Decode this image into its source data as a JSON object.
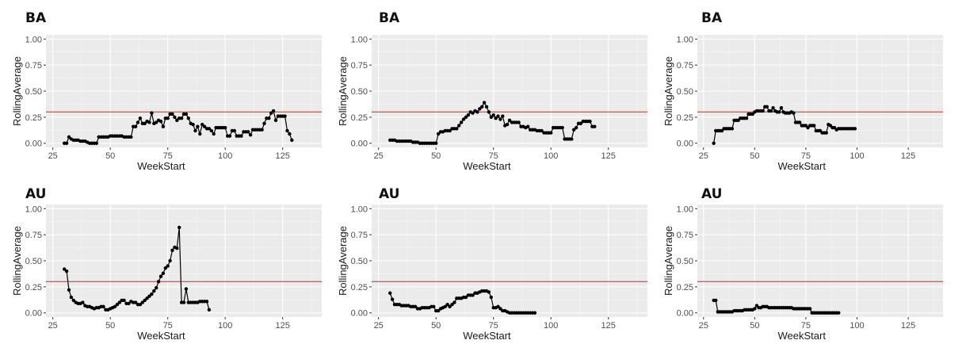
{
  "chart_data": [
    {
      "type": "line",
      "title": "BA",
      "xlabel": "WeekStart",
      "ylabel": "RollingAverage",
      "xlim": [
        22,
        142
      ],
      "ylim": [
        -0.04,
        1.04
      ],
      "xticks": [
        "25",
        "50",
        "75",
        "100",
        "125"
      ],
      "yticks": [
        "0.00",
        "0.25",
        "0.50",
        "0.75",
        "1.00"
      ],
      "hline": 0.3,
      "hline_color": "#e8554e",
      "grid": true,
      "background": "#ebebeb",
      "x": [
        30,
        31,
        32,
        33,
        34,
        35,
        36,
        37,
        38,
        39,
        40,
        41,
        42,
        43,
        44,
        45,
        46,
        47,
        48,
        49,
        50,
        51,
        52,
        53,
        54,
        55,
        56,
        57,
        58,
        59,
        60,
        61,
        62,
        63,
        64,
        65,
        66,
        67,
        68,
        69,
        70,
        71,
        72,
        73,
        74,
        75,
        76,
        77,
        78,
        79,
        80,
        81,
        82,
        83,
        84,
        85,
        86,
        87,
        88,
        89,
        90,
        91,
        92,
        93,
        94,
        95,
        96,
        97,
        98,
        99,
        100,
        101,
        102,
        103,
        104,
        105,
        106,
        107,
        108,
        109,
        110,
        111,
        112,
        113,
        114,
        115,
        116,
        117,
        118,
        119,
        120,
        121,
        122,
        123,
        124,
        125,
        126,
        127,
        128,
        129
      ],
      "y": [
        0.0,
        0.0,
        0.06,
        0.04,
        0.03,
        0.03,
        0.03,
        0.02,
        0.02,
        0.02,
        0.01,
        0.0,
        0.0,
        0.0,
        0.0,
        0.06,
        0.06,
        0.06,
        0.06,
        0.06,
        0.07,
        0.07,
        0.07,
        0.07,
        0.07,
        0.07,
        0.06,
        0.06,
        0.06,
        0.06,
        0.16,
        0.16,
        0.2,
        0.24,
        0.19,
        0.19,
        0.21,
        0.2,
        0.29,
        0.19,
        0.2,
        0.22,
        0.21,
        0.16,
        0.24,
        0.24,
        0.28,
        0.28,
        0.25,
        0.22,
        0.24,
        0.24,
        0.28,
        0.28,
        0.24,
        0.19,
        0.18,
        0.12,
        0.16,
        0.09,
        0.18,
        0.16,
        0.14,
        0.14,
        0.12,
        0.09,
        0.15,
        0.15,
        0.15,
        0.15,
        0.15,
        0.07,
        0.07,
        0.12,
        0.12,
        0.07,
        0.07,
        0.07,
        0.11,
        0.11,
        0.11,
        0.08,
        0.13,
        0.13,
        0.13,
        0.13,
        0.13,
        0.19,
        0.24,
        0.24,
        0.29,
        0.31,
        0.22,
        0.26,
        0.26,
        0.26,
        0.26,
        0.12,
        0.09,
        0.03
      ]
    },
    {
      "type": "line",
      "title": "BA",
      "xlabel": "WeekStart",
      "ylabel": "RollingAverage",
      "xlim": [
        22,
        142
      ],
      "ylim": [
        -0.04,
        1.04
      ],
      "xticks": [
        "25",
        "50",
        "75",
        "100",
        "125"
      ],
      "yticks": [
        "0.00",
        "0.25",
        "0.50",
        "0.75",
        "1.00"
      ],
      "hline": 0.3,
      "hline_color": "#e8554e",
      "grid": true,
      "background": "#ebebeb",
      "x": [
        30,
        31,
        32,
        33,
        34,
        35,
        36,
        37,
        38,
        39,
        40,
        41,
        42,
        43,
        44,
        45,
        46,
        47,
        48,
        49,
        50,
        51,
        52,
        53,
        54,
        55,
        56,
        57,
        58,
        59,
        60,
        61,
        62,
        63,
        64,
        65,
        66,
        67,
        68,
        69,
        70,
        71,
        72,
        73,
        74,
        75,
        76,
        77,
        78,
        79,
        80,
        81,
        82,
        83,
        84,
        85,
        86,
        87,
        88,
        89,
        90,
        91,
        92,
        93,
        94,
        95,
        96,
        97,
        98,
        99,
        100,
        101,
        102,
        103,
        104,
        105,
        106,
        107,
        108,
        109,
        110,
        111,
        112,
        113,
        114,
        115,
        116,
        117,
        118,
        119
      ],
      "y": [
        0.03,
        0.03,
        0.03,
        0.02,
        0.02,
        0.02,
        0.02,
        0.02,
        0.02,
        0.02,
        0.01,
        0.01,
        0.01,
        0.0,
        0.0,
        0.0,
        0.0,
        0.0,
        0.0,
        0.0,
        0.0,
        0.09,
        0.11,
        0.11,
        0.12,
        0.12,
        0.12,
        0.14,
        0.14,
        0.14,
        0.17,
        0.2,
        0.23,
        0.25,
        0.27,
        0.3,
        0.29,
        0.31,
        0.3,
        0.33,
        0.35,
        0.39,
        0.35,
        0.3,
        0.25,
        0.27,
        0.24,
        0.26,
        0.23,
        0.26,
        0.17,
        0.18,
        0.22,
        0.2,
        0.2,
        0.2,
        0.2,
        0.16,
        0.16,
        0.15,
        0.16,
        0.13,
        0.13,
        0.13,
        0.12,
        0.12,
        0.12,
        0.1,
        0.1,
        0.1,
        0.1,
        0.15,
        0.15,
        0.15,
        0.15,
        0.15,
        0.04,
        0.04,
        0.04,
        0.04,
        0.13,
        0.15,
        0.19,
        0.19,
        0.21,
        0.21,
        0.21,
        0.21,
        0.16,
        0.16
      ]
    },
    {
      "type": "line",
      "title": "BA",
      "xlabel": "WeekStart",
      "ylabel": "RollingAverage",
      "xlim": [
        22,
        142
      ],
      "ylim": [
        -0.04,
        1.04
      ],
      "xticks": [
        "25",
        "50",
        "75",
        "100",
        "125"
      ],
      "yticks": [
        "0.00",
        "0.25",
        "0.50",
        "0.75",
        "1.00"
      ],
      "hline": 0.3,
      "hline_color": "#e8554e",
      "grid": true,
      "background": "#ebebeb",
      "x": [
        30,
        31,
        32,
        33,
        34,
        35,
        36,
        37,
        38,
        39,
        40,
        41,
        42,
        43,
        44,
        45,
        46,
        47,
        48,
        49,
        50,
        51,
        52,
        53,
        54,
        55,
        56,
        57,
        58,
        59,
        60,
        61,
        62,
        63,
        64,
        65,
        66,
        67,
        68,
        69,
        70,
        71,
        72,
        73,
        74,
        75,
        76,
        77,
        78,
        79,
        80,
        81,
        82,
        83,
        84,
        85,
        86,
        87,
        88,
        89,
        90,
        91,
        92,
        93,
        94,
        95,
        96,
        97,
        98,
        99
      ],
      "y": [
        0.0,
        0.12,
        0.12,
        0.12,
        0.12,
        0.14,
        0.14,
        0.14,
        0.14,
        0.14,
        0.22,
        0.22,
        0.22,
        0.24,
        0.24,
        0.24,
        0.24,
        0.28,
        0.28,
        0.28,
        0.3,
        0.31,
        0.31,
        0.31,
        0.31,
        0.35,
        0.35,
        0.31,
        0.31,
        0.34,
        0.31,
        0.3,
        0.3,
        0.34,
        0.3,
        0.29,
        0.29,
        0.29,
        0.3,
        0.29,
        0.2,
        0.2,
        0.2,
        0.17,
        0.17,
        0.17,
        0.15,
        0.17,
        0.17,
        0.17,
        0.12,
        0.12,
        0.12,
        0.1,
        0.1,
        0.1,
        0.18,
        0.17,
        0.15,
        0.15,
        0.13,
        0.14,
        0.14,
        0.14,
        0.14,
        0.14,
        0.14,
        0.14,
        0.14,
        0.14
      ]
    },
    {
      "type": "line",
      "title": "AU",
      "xlabel": "WeekStart",
      "ylabel": "RollingAverage",
      "xlim": [
        22,
        142
      ],
      "ylim": [
        -0.04,
        1.04
      ],
      "xticks": [
        "25",
        "50",
        "75",
        "100",
        "125"
      ],
      "yticks": [
        "0.00",
        "0.25",
        "0.50",
        "0.75",
        "1.00"
      ],
      "hline": 0.3,
      "hline_color": "#e8554e",
      "grid": true,
      "background": "#ebebeb",
      "x": [
        30,
        31,
        32,
        33,
        34,
        35,
        36,
        37,
        38,
        39,
        40,
        41,
        42,
        43,
        44,
        45,
        46,
        47,
        48,
        49,
        50,
        51,
        52,
        53,
        54,
        55,
        56,
        57,
        58,
        59,
        60,
        61,
        62,
        63,
        64,
        65,
        66,
        67,
        68,
        69,
        70,
        71,
        72,
        73,
        74,
        75,
        76,
        77,
        78,
        79,
        80,
        81,
        82,
        83,
        84,
        85,
        86,
        87,
        88,
        89,
        90,
        91,
        92,
        93
      ],
      "y": [
        0.42,
        0.4,
        0.22,
        0.15,
        0.12,
        0.1,
        0.09,
        0.09,
        0.1,
        0.07,
        0.06,
        0.06,
        0.05,
        0.04,
        0.05,
        0.05,
        0.06,
        0.06,
        0.03,
        0.03,
        0.04,
        0.05,
        0.06,
        0.08,
        0.1,
        0.12,
        0.12,
        0.09,
        0.09,
        0.11,
        0.1,
        0.1,
        0.08,
        0.08,
        0.1,
        0.12,
        0.14,
        0.16,
        0.18,
        0.21,
        0.24,
        0.3,
        0.35,
        0.38,
        0.43,
        0.45,
        0.5,
        0.6,
        0.63,
        0.62,
        0.82,
        0.1,
        0.1,
        0.23,
        0.1,
        0.1,
        0.1,
        0.1,
        0.1,
        0.11,
        0.11,
        0.11,
        0.11,
        0.03
      ]
    },
    {
      "type": "line",
      "title": "AU",
      "xlabel": "WeekStart",
      "ylabel": "RollingAverage",
      "xlim": [
        22,
        142
      ],
      "ylim": [
        -0.04,
        1.04
      ],
      "xticks": [
        "25",
        "50",
        "75",
        "100",
        "125"
      ],
      "yticks": [
        "0.00",
        "0.25",
        "0.50",
        "0.75",
        "1.00"
      ],
      "hline": 0.3,
      "hline_color": "#e8554e",
      "grid": true,
      "background": "#ebebeb",
      "x": [
        30,
        31,
        32,
        33,
        34,
        35,
        36,
        37,
        38,
        39,
        40,
        41,
        42,
        43,
        44,
        45,
        46,
        47,
        48,
        49,
        50,
        51,
        52,
        53,
        54,
        55,
        56,
        57,
        58,
        59,
        60,
        61,
        62,
        63,
        64,
        65,
        66,
        67,
        68,
        69,
        70,
        71,
        72,
        73,
        74,
        75,
        76,
        77,
        78,
        79,
        80,
        81,
        82,
        83,
        84,
        85,
        86,
        87,
        88,
        89,
        90,
        91,
        92,
        93
      ],
      "y": [
        0.19,
        0.13,
        0.08,
        0.08,
        0.08,
        0.07,
        0.07,
        0.07,
        0.07,
        0.06,
        0.06,
        0.06,
        0.04,
        0.04,
        0.05,
        0.05,
        0.05,
        0.05,
        0.06,
        0.06,
        0.02,
        0.02,
        0.04,
        0.05,
        0.06,
        0.08,
        0.06,
        0.08,
        0.1,
        0.14,
        0.14,
        0.14,
        0.15,
        0.15,
        0.17,
        0.17,
        0.17,
        0.19,
        0.19,
        0.2,
        0.21,
        0.21,
        0.21,
        0.2,
        0.15,
        0.05,
        0.05,
        0.06,
        0.04,
        0.02,
        0.02,
        0.01,
        0.0,
        0.0,
        0.0,
        0.0,
        0.0,
        0.0,
        0.0,
        0.0,
        0.0,
        0.0,
        0.0,
        0.0
      ]
    },
    {
      "type": "line",
      "title": "AU",
      "xlabel": "WeekStart",
      "ylabel": "RollingAverage",
      "xlim": [
        22,
        142
      ],
      "ylim": [
        -0.04,
        1.04
      ],
      "xticks": [
        "25",
        "50",
        "75",
        "100",
        "125"
      ],
      "yticks": [
        "0.00",
        "0.25",
        "0.50",
        "0.75",
        "1.00"
      ],
      "hline": 0.3,
      "hline_color": "#e8554e",
      "grid": true,
      "background": "#ebebeb",
      "x": [
        30,
        31,
        32,
        33,
        34,
        35,
        36,
        37,
        38,
        39,
        40,
        41,
        42,
        43,
        44,
        45,
        46,
        47,
        48,
        49,
        50,
        51,
        52,
        53,
        54,
        55,
        56,
        57,
        58,
        59,
        60,
        61,
        62,
        63,
        64,
        65,
        66,
        67,
        68,
        69,
        70,
        71,
        72,
        73,
        74,
        75,
        76,
        77,
        78,
        79,
        80,
        81,
        82,
        83,
        84,
        85,
        86,
        87,
        88,
        89,
        90,
        91
      ],
      "y": [
        0.12,
        0.12,
        0.01,
        0.01,
        0.01,
        0.01,
        0.01,
        0.01,
        0.01,
        0.01,
        0.02,
        0.02,
        0.02,
        0.02,
        0.02,
        0.03,
        0.03,
        0.03,
        0.03,
        0.03,
        0.04,
        0.07,
        0.05,
        0.05,
        0.06,
        0.06,
        0.06,
        0.05,
        0.05,
        0.05,
        0.05,
        0.05,
        0.05,
        0.05,
        0.05,
        0.05,
        0.05,
        0.05,
        0.05,
        0.04,
        0.04,
        0.04,
        0.04,
        0.04,
        0.04,
        0.04,
        0.04,
        0.04,
        0.0,
        0.0,
        0.0,
        0.0,
        0.0,
        0.0,
        0.0,
        0.0,
        0.0,
        0.0,
        0.0,
        0.0,
        0.0,
        0.0
      ]
    }
  ]
}
